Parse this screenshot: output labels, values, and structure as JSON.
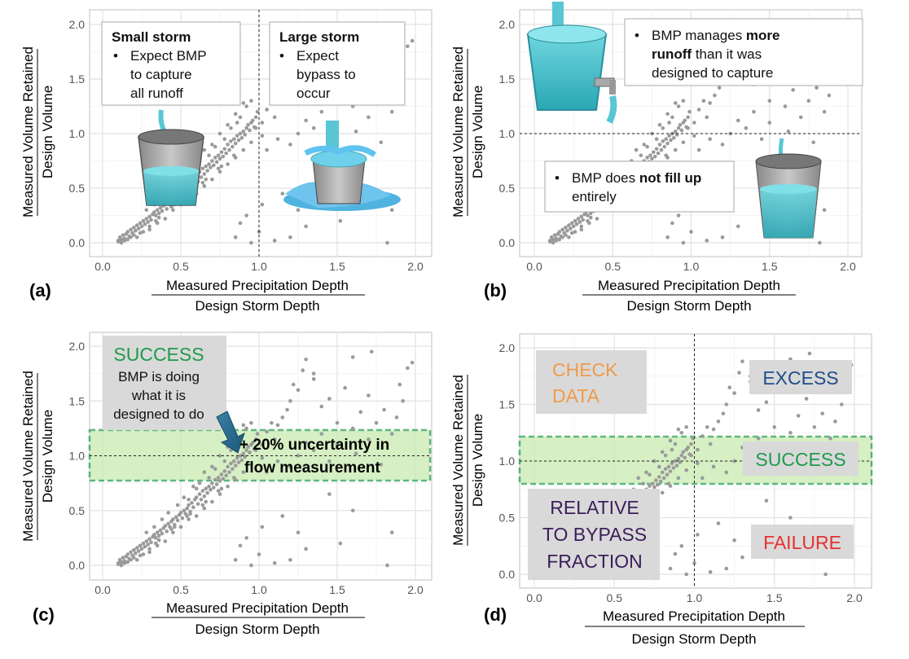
{
  "chart_data": [
    {
      "panel": "(a)",
      "type": "scatter",
      "xlabel_top": "Measured Precipitation Depth",
      "xlabel_bottom": "Design Storm Depth",
      "ylabel_top": "Measured Volume Retained",
      "ylabel_bottom": "Design Volume",
      "xlim": [
        -0.1,
        2.1
      ],
      "ylim": [
        -0.1,
        2.05
      ],
      "xticks": [
        "0.0",
        "0.5",
        "1.0",
        "1.5",
        "2.0"
      ],
      "yticks": [
        "0.0",
        "0.5",
        "1.0",
        "1.5",
        "2.0"
      ],
      "vline_x": 1.0,
      "annotations": [
        {
          "title": "Small storm",
          "bullet": "•",
          "lines": [
            "Expect BMP",
            "to capture",
            "all runoff"
          ]
        },
        {
          "title": "Large storm",
          "bullet": "•",
          "lines": [
            "Expect",
            "bypass to",
            "occur"
          ]
        }
      ]
    },
    {
      "panel": "(b)",
      "type": "scatter",
      "xlabel_top": "Measured Precipitation Depth",
      "xlabel_bottom": "Design Storm Depth",
      "ylabel_top": "Measured Volume Retained",
      "ylabel_bottom": "Design Volume",
      "xlim": [
        -0.1,
        2.1
      ],
      "ylim": [
        -0.1,
        2.05
      ],
      "xticks": [
        "0.0",
        "0.5",
        "1.0",
        "1.5",
        "2.0"
      ],
      "yticks": [
        "0.0",
        "0.5",
        "1.0",
        "1.5",
        "2.0"
      ],
      "hline_y": 1.0,
      "annotations": [
        {
          "bullet": "•",
          "text_parts": [
            [
              "BMP manages ",
              false
            ],
            [
              "more",
              true
            ]
          ],
          "line2": [
            [
              "runoff",
              true
            ],
            [
              " than it was",
              false
            ]
          ],
          "line3": "designed to capture"
        },
        {
          "bullet": "•",
          "text_parts": [
            [
              "BMP does ",
              false
            ],
            [
              "not fill up",
              true
            ]
          ],
          "line2": "entirely"
        }
      ]
    },
    {
      "panel": "(c)",
      "type": "scatter",
      "xlabel_top": "Measured Precipitation Depth",
      "xlabel_bottom": "Design Storm Depth",
      "ylabel_top": "Measured Volume Retained",
      "ylabel_bottom": "Design Volume",
      "xlim": [
        -0.1,
        2.1
      ],
      "ylim": [
        -0.1,
        2.05
      ],
      "xticks": [
        "0.0",
        "0.5",
        "1.0",
        "1.5",
        "2.0"
      ],
      "yticks": [
        "0.0",
        "0.5",
        "1.0",
        "1.5",
        "2.0"
      ],
      "hline_y": 1.0,
      "band": [
        0.8,
        1.2
      ],
      "annotations": [
        {
          "title": "SUCCESS",
          "lines": [
            "BMP is doing",
            "what it is",
            "designed to do"
          ]
        },
        {
          "lines": [
            "+ 20% uncertainty in",
            "flow measurement"
          ]
        }
      ]
    },
    {
      "panel": "(d)",
      "type": "scatter",
      "xlabel_top": "Measured Precipitation Depth",
      "xlabel_bottom": "Design Storm Depth",
      "ylabel_top": "Measured Volume Retained",
      "ylabel_bottom": "Design Volume",
      "xlim": [
        -0.1,
        2.1
      ],
      "ylim": [
        -0.1,
        2.05
      ],
      "xticks": [
        "0.0",
        "0.5",
        "1.0",
        "1.5",
        "2.0"
      ],
      "yticks": [
        "0.0",
        "0.5",
        "1.0",
        "1.5",
        "2.0"
      ],
      "vline_x": 1.0,
      "hline_y": 1.0,
      "band": [
        0.8,
        1.2
      ],
      "region_labels": {
        "check": [
          "CHECK",
          "DATA"
        ],
        "excess": [
          "EXCESS"
        ],
        "success": [
          "SUCCESS"
        ],
        "relative": [
          "RELATIVE",
          "TO BYPASS",
          "FRACTION"
        ],
        "failure": [
          "FAILURE"
        ]
      }
    }
  ],
  "points": [
    [
      0.1,
      0.02
    ],
    [
      0.11,
      0.05
    ],
    [
      0.12,
      0.03
    ],
    [
      0.13,
      0.07
    ],
    [
      0.14,
      0.04
    ],
    [
      0.15,
      0.08
    ],
    [
      0.16,
      0.1
    ],
    [
      0.17,
      0.06
    ],
    [
      0.18,
      0.12
    ],
    [
      0.19,
      0.09
    ],
    [
      0.2,
      0.14
    ],
    [
      0.21,
      0.11
    ],
    [
      0.22,
      0.16
    ],
    [
      0.23,
      0.13
    ],
    [
      0.24,
      0.18
    ],
    [
      0.25,
      0.15
    ],
    [
      0.26,
      0.2
    ],
    [
      0.27,
      0.17
    ],
    [
      0.28,
      0.22
    ],
    [
      0.29,
      0.19
    ],
    [
      0.3,
      0.24
    ],
    [
      0.31,
      0.21
    ],
    [
      0.32,
      0.26
    ],
    [
      0.33,
      0.28
    ],
    [
      0.34,
      0.25
    ],
    [
      0.35,
      0.3
    ],
    [
      0.36,
      0.27
    ],
    [
      0.37,
      0.32
    ],
    [
      0.38,
      0.29
    ],
    [
      0.39,
      0.34
    ],
    [
      0.4,
      0.36
    ],
    [
      0.41,
      0.31
    ],
    [
      0.42,
      0.38
    ],
    [
      0.43,
      0.35
    ],
    [
      0.44,
      0.4
    ],
    [
      0.45,
      0.42
    ],
    [
      0.46,
      0.37
    ],
    [
      0.47,
      0.44
    ],
    [
      0.48,
      0.41
    ],
    [
      0.49,
      0.46
    ],
    [
      0.5,
      0.48
    ],
    [
      0.51,
      0.43
    ],
    [
      0.52,
      0.5
    ],
    [
      0.53,
      0.47
    ],
    [
      0.54,
      0.52
    ],
    [
      0.55,
      0.55
    ],
    [
      0.56,
      0.49
    ],
    [
      0.57,
      0.57
    ],
    [
      0.58,
      0.53
    ],
    [
      0.59,
      0.6
    ],
    [
      0.6,
      0.62
    ],
    [
      0.61,
      0.56
    ],
    [
      0.62,
      0.65
    ],
    [
      0.63,
      0.6
    ],
    [
      0.64,
      0.68
    ],
    [
      0.65,
      0.63
    ],
    [
      0.66,
      0.7
    ],
    [
      0.67,
      0.66
    ],
    [
      0.68,
      0.72
    ],
    [
      0.69,
      0.69
    ],
    [
      0.7,
      0.75
    ],
    [
      0.71,
      0.71
    ],
    [
      0.72,
      0.78
    ],
    [
      0.73,
      0.74
    ],
    [
      0.74,
      0.8
    ],
    [
      0.75,
      0.77
    ],
    [
      0.76,
      0.83
    ],
    [
      0.77,
      0.79
    ],
    [
      0.78,
      0.86
    ],
    [
      0.79,
      0.82
    ],
    [
      0.8,
      0.9
    ],
    [
      0.81,
      0.85
    ],
    [
      0.82,
      0.93
    ],
    [
      0.83,
      0.88
    ],
    [
      0.84,
      0.95
    ],
    [
      0.85,
      0.91
    ],
    [
      0.86,
      0.98
    ],
    [
      0.87,
      0.94
    ],
    [
      0.88,
      1.0
    ],
    [
      0.89,
      0.96
    ],
    [
      0.9,
      1.02
    ],
    [
      0.91,
      0.99
    ],
    [
      0.92,
      1.05
    ],
    [
      0.93,
      1.08
    ],
    [
      0.94,
      1.03
    ],
    [
      0.95,
      1.1
    ],
    [
      0.96,
      1.12
    ],
    [
      0.97,
      1.06
    ],
    [
      0.98,
      1.15
    ],
    [
      0.99,
      1.2
    ],
    [
      0.22,
      0.05
    ],
    [
      0.3,
      0.12
    ],
    [
      0.35,
      0.18
    ],
    [
      0.4,
      0.22
    ],
    [
      0.45,
      0.3
    ],
    [
      0.5,
      0.35
    ],
    [
      0.55,
      0.42
    ],
    [
      0.6,
      0.45
    ],
    [
      0.65,
      0.52
    ],
    [
      0.7,
      0.58
    ],
    [
      0.75,
      0.65
    ],
    [
      0.8,
      0.72
    ],
    [
      0.85,
      0.78
    ],
    [
      0.9,
      0.85
    ],
    [
      0.95,
      0.92
    ],
    [
      0.62,
      0.75
    ],
    [
      0.68,
      0.8
    ],
    [
      0.72,
      0.88
    ],
    [
      0.78,
      0.95
    ],
    [
      0.82,
      1.05
    ],
    [
      0.86,
      1.1
    ],
    [
      0.88,
      1.15
    ],
    [
      0.92,
      1.25
    ],
    [
      0.95,
      1.3
    ],
    [
      0.98,
      1.05
    ],
    [
      0.7,
      0.9
    ],
    [
      0.75,
      1.0
    ],
    [
      0.8,
      1.08
    ],
    [
      0.85,
      1.18
    ],
    [
      0.9,
      1.28
    ],
    [
      0.6,
      0.7
    ],
    [
      0.65,
      0.85
    ],
    [
      0.55,
      0.6
    ],
    [
      0.58,
      0.72
    ],
    [
      0.48,
      0.55
    ],
    [
      0.52,
      0.62
    ],
    [
      0.42,
      0.48
    ],
    [
      0.38,
      0.42
    ],
    [
      0.33,
      0.35
    ],
    [
      0.28,
      0.3
    ],
    [
      1.02,
      1.1
    ],
    [
      1.05,
      1.22
    ],
    [
      1.08,
      1.3
    ],
    [
      1.1,
      1.15
    ],
    [
      1.12,
      1.28
    ],
    [
      1.15,
      1.35
    ],
    [
      1.18,
      1.42
    ],
    [
      1.2,
      1.5
    ],
    [
      1.22,
      1.65
    ],
    [
      1.25,
      1.6
    ],
    [
      1.28,
      1.78
    ],
    [
      1.3,
      1.88
    ],
    [
      1.35,
      1.7
    ],
    [
      1.4,
      1.45
    ],
    [
      1.45,
      1.52
    ],
    [
      1.5,
      1.3
    ],
    [
      1.55,
      1.62
    ],
    [
      1.6,
      1.25
    ],
    [
      1.65,
      1.4
    ],
    [
      1.7,
      1.55
    ],
    [
      1.75,
      1.3
    ],
    [
      1.8,
      1.42
    ],
    [
      1.85,
      1.2
    ],
    [
      1.88,
      1.35
    ],
    [
      1.92,
      1.5
    ],
    [
      1.95,
      1.8
    ],
    [
      1.98,
      1.85
    ],
    [
      1.2,
      0.9
    ],
    [
      1.25,
      1.0
    ],
    [
      1.3,
      1.12
    ],
    [
      1.12,
      0.95
    ],
    [
      1.05,
      0.85
    ],
    [
      1.02,
      0.98
    ],
    [
      1.35,
      1.05
    ],
    [
      1.4,
      1.2
    ],
    [
      1.45,
      0.95
    ],
    [
      1.5,
      1.1
    ],
    [
      1.62,
      1.02
    ],
    [
      1.7,
      1.15
    ],
    [
      1.78,
      0.92
    ],
    [
      1.82,
      0.0
    ],
    [
      1.85,
      0.3
    ],
    [
      1.6,
      0.5
    ],
    [
      1.45,
      0.65
    ],
    [
      1.52,
      0.2
    ],
    [
      1.3,
      0.15
    ],
    [
      1.2,
      0.05
    ],
    [
      1.1,
      0.02
    ],
    [
      1.0,
      0.1
    ],
    [
      0.95,
      0.0
    ],
    [
      0.92,
      0.25
    ],
    [
      0.88,
      0.18
    ],
    [
      0.85,
      0.05
    ],
    [
      1.02,
      0.35
    ],
    [
      1.15,
      0.45
    ],
    [
      1.25,
      0.3
    ],
    [
      1.35,
      1.75
    ],
    [
      1.6,
      1.9
    ],
    [
      1.72,
      1.95
    ],
    [
      1.9,
      1.65
    ],
    [
      0.1,
      0.01
    ],
    [
      0.12,
      0.0
    ],
    [
      0.14,
      0.02
    ],
    [
      0.16,
      0.03
    ],
    [
      0.18,
      0.05
    ],
    [
      0.2,
      0.07
    ],
    [
      0.24,
      0.09
    ],
    [
      0.26,
      0.1
    ],
    [
      0.3,
      0.15
    ],
    [
      0.34,
      0.2
    ],
    [
      0.36,
      0.23
    ],
    [
      0.44,
      0.33
    ],
    [
      0.46,
      0.35
    ],
    [
      0.54,
      0.45
    ],
    [
      0.56,
      0.47
    ],
    [
      0.64,
      0.55
    ],
    [
      0.66,
      0.58
    ],
    [
      0.74,
      0.68
    ],
    [
      0.76,
      0.7
    ],
    [
      0.84,
      0.8
    ]
  ]
}
